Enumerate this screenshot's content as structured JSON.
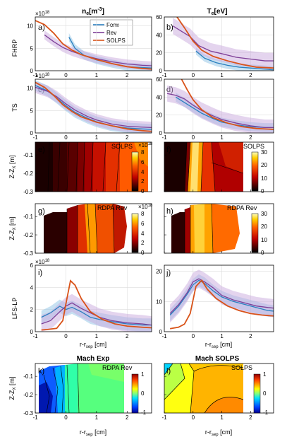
{
  "colors": {
    "forw": "#2a7fbf",
    "rev": "#7e3f98",
    "solps": "#d95319",
    "forw_band": "#8fc3e6",
    "rev_band": "#c9a9dd"
  },
  "column_titles": {
    "ne": "n",
    "ne_sub": "e",
    "ne_unit": "[m",
    "ne_exp": "-3",
    "ne_close": "]",
    "te": "T",
    "te_sub": "e",
    "te_unit": "[eV]"
  },
  "row_labels": {
    "fhrp": "FHRP",
    "ts": "TS",
    "lfslp": "LFS-LP",
    "zz": "Z-Z",
    "zz_sub": "X",
    "zz_unit": " [m]"
  },
  "x_axis_label": {
    "main": "r-r",
    "sub": "sep",
    "unit": " [cm]"
  },
  "exp_label": "18",
  "legend": [
    "Forw",
    "Rev",
    "SOLPS"
  ],
  "panel_letters": [
    "a)",
    "b)",
    "c)",
    "d)",
    "e)",
    "f)",
    "g)",
    "h)",
    "i)",
    "j)",
    "k)",
    "l)"
  ],
  "map_titles": {
    "k": "Mach Exp",
    "l": "Mach SOLPS"
  },
  "map_tags": {
    "e": "SOLPS",
    "f": "SOLPS",
    "g": "RDPA Rev",
    "h": "RDPA Rev",
    "k": "RDPA Rev",
    "l": "SOLPS"
  },
  "colorbars": {
    "e": {
      "ticks": [
        "8",
        "6",
        "4",
        "2",
        "0"
      ],
      "exp": "18"
    },
    "f": {
      "ticks": [
        "30",
        "20",
        "10",
        "0"
      ]
    },
    "g": {
      "ticks": [
        "8",
        "6",
        "4",
        "2",
        "0"
      ],
      "exp": "18"
    },
    "h": {
      "ticks": [
        "30",
        "20",
        "10",
        "0"
      ]
    },
    "l": {
      "ticks": [
        "1",
        "0",
        "-1"
      ]
    },
    "k": {
      "ticks": [
        "1",
        "0",
        "-1"
      ]
    }
  },
  "chart_data": [
    {
      "id": "a",
      "type": "line",
      "ylabel": "FHRP",
      "xlim": [
        -1,
        2.8
      ],
      "ylim": [
        0,
        12
      ],
      "yticks": [
        0,
        5,
        10
      ],
      "exponent": "18",
      "legend": true,
      "series": [
        {
          "name": "Forw",
          "x": [
            0.1,
            0.3,
            0.6,
            1.0,
            1.5,
            2.0,
            2.5,
            2.8
          ],
          "y": [
            7.5,
            5.0,
            3.4,
            2.4,
            1.6,
            0.9,
            0.7,
            0.6
          ],
          "band": 0.9
        },
        {
          "name": "Rev",
          "x": [
            -0.7,
            -0.4,
            -0.1,
            0.2,
            0.6,
            1.0,
            1.5,
            2.0,
            2.5,
            2.8
          ],
          "y": [
            8.0,
            6.5,
            5.2,
            4.3,
            3.4,
            2.7,
            2.0,
            1.5,
            1.2,
            1.1
          ],
          "band": 1.0
        },
        {
          "name": "SOLPS",
          "x": [
            -1.0,
            -0.7,
            -0.4,
            -0.1,
            0.2,
            0.5,
            1.0,
            1.5,
            2.0,
            2.5,
            2.8
          ],
          "y": [
            11.2,
            10.3,
            8.4,
            6.0,
            4.6,
            3.6,
            2.5,
            1.6,
            0.9,
            0.5,
            0.35
          ]
        }
      ]
    },
    {
      "id": "b",
      "type": "line",
      "xlim": [
        -1,
        2.8
      ],
      "ylim": [
        0,
        60
      ],
      "yticks": [
        0,
        20,
        40,
        60
      ],
      "series": [
        {
          "name": "Forw",
          "x": [
            0.1,
            0.4,
            0.8,
            1.2,
            1.6,
            2.0,
            2.4,
            2.8
          ],
          "y": [
            22,
            14,
            9,
            6,
            4,
            3,
            2,
            1
          ],
          "band": 4
        },
        {
          "name": "Rev",
          "x": [
            -0.7,
            -0.4,
            -0.1,
            0.2,
            0.6,
            1.0,
            1.5,
            2.0,
            2.5,
            2.8
          ],
          "y": [
            50,
            44,
            38,
            28,
            22,
            19,
            15,
            13,
            11,
            11
          ],
          "band": 9
        },
        {
          "name": "SOLPS",
          "x": [
            -0.9,
            -0.6,
            -0.3,
            0.0,
            0.3,
            0.7,
            1.2,
            1.7,
            2.2,
            2.8
          ],
          "y": [
            75,
            62,
            48,
            33,
            23,
            16,
            11,
            7,
            4,
            3
          ]
        }
      ]
    },
    {
      "id": "c",
      "type": "line",
      "ylabel": "TS",
      "xlim": [
        -1,
        2.8
      ],
      "ylim": [
        0,
        12
      ],
      "yticks": [
        0,
        5,
        10
      ],
      "exponent": "18",
      "series": [
        {
          "name": "Forw",
          "x": [
            -1.0,
            -0.6,
            -0.3,
            0.0,
            0.3,
            0.7,
            1.0,
            1.5,
            2.0,
            2.5,
            2.8
          ],
          "y": [
            10.6,
            9.4,
            7.8,
            6.1,
            4.6,
            3.3,
            2.5,
            1.6,
            1.1,
            0.9,
            0.8
          ],
          "band": 1.2
        },
        {
          "name": "Rev",
          "x": [
            -1.0,
            -0.6,
            -0.3,
            0.0,
            0.3,
            0.7,
            1.0,
            1.5,
            2.0,
            2.5,
            2.8
          ],
          "y": [
            10.2,
            9.3,
            8.1,
            6.5,
            5.1,
            3.7,
            2.9,
            2.0,
            1.5,
            1.3,
            1.2
          ],
          "band": 1.3
        },
        {
          "name": "SOLPS",
          "x": [
            -1.0,
            -0.7,
            -0.4,
            -0.1,
            0.2,
            0.5,
            1.0,
            1.5,
            2.0,
            2.5,
            2.8
          ],
          "y": [
            11.3,
            10.2,
            8.4,
            6.3,
            4.8,
            3.6,
            2.4,
            1.6,
            0.9,
            0.5,
            0.35
          ]
        }
      ]
    },
    {
      "id": "d",
      "type": "line",
      "xlim": [
        -1,
        2.8
      ],
      "ylim": [
        0,
        60
      ],
      "yticks": [
        0,
        20,
        40,
        60
      ],
      "series": [
        {
          "name": "Forw",
          "x": [
            -0.6,
            -0.3,
            0.0,
            0.3,
            0.7,
            1.0,
            1.5,
            2.0,
            2.5,
            2.8
          ],
          "y": [
            40,
            34,
            28,
            22,
            16,
            12,
            9,
            7,
            6,
            6
          ],
          "band": 5
        },
        {
          "name": "Rev",
          "x": [
            -0.9,
            -0.6,
            -0.3,
            0.0,
            0.3,
            0.7,
            1.0,
            1.5,
            2.0,
            2.5,
            2.8
          ],
          "y": [
            44,
            42,
            38,
            31,
            25,
            19,
            15,
            11,
            8,
            6,
            6
          ],
          "band": 9
        },
        {
          "name": "SOLPS",
          "x": [
            -0.4,
            -0.2,
            0.0,
            0.3,
            0.7,
            1.2,
            1.7,
            2.2,
            2.8
          ],
          "y": [
            60,
            48,
            37,
            26,
            17,
            11,
            7,
            5,
            4
          ]
        }
      ]
    },
    {
      "id": "i",
      "type": "line",
      "ylabel": "LFS-LP",
      "xlim": [
        -1,
        2.8
      ],
      "ylim": [
        0,
        6
      ],
      "yticks": [
        0,
        2,
        4,
        6
      ],
      "exponent": "18",
      "series": [
        {
          "name": "Forw",
          "x": [
            -0.8,
            -0.5,
            -0.2,
            0.0,
            0.2,
            0.5,
            0.8,
            1.1,
            1.5,
            2.0,
            2.5,
            2.8
          ],
          "y": [
            1.3,
            1.7,
            2.3,
            2.0,
            2.2,
            1.8,
            1.3,
            1.1,
            0.9,
            0.7,
            0.6,
            0.6
          ],
          "band": 0.6
        },
        {
          "name": "Rev",
          "x": [
            -0.8,
            -0.5,
            -0.2,
            0.0,
            0.2,
            0.5,
            0.8,
            1.1,
            1.5,
            2.0,
            2.5,
            2.8
          ],
          "y": [
            0.7,
            1.0,
            1.8,
            2.3,
            2.6,
            2.1,
            1.7,
            1.3,
            1.0,
            0.8,
            0.7,
            0.6
          ],
          "band": 0.8
        },
        {
          "name": "SOLPS",
          "x": [
            -0.8,
            -0.6,
            -0.3,
            -0.1,
            0.0,
            0.15,
            0.3,
            0.5,
            0.8,
            1.2,
            1.6,
            2.0,
            2.5,
            2.8
          ],
          "y": [
            0.15,
            0.2,
            0.3,
            1.0,
            2.5,
            4.6,
            4.2,
            3.0,
            1.8,
            1.1,
            0.7,
            0.5,
            0.4,
            0.35
          ]
        }
      ]
    },
    {
      "id": "j",
      "type": "line",
      "xlim": [
        -1,
        2.8
      ],
      "ylim": [
        0,
        22
      ],
      "yticks": [
        0,
        10,
        20
      ],
      "series": [
        {
          "name": "Forw",
          "x": [
            -0.8,
            -0.5,
            -0.2,
            0.0,
            0.2,
            0.4,
            0.7,
            1.0,
            1.4,
            1.8,
            2.2,
            2.6,
            2.8
          ],
          "y": [
            5.5,
            8.5,
            12.5,
            15.5,
            17.0,
            16.0,
            13.5,
            11.5,
            10.0,
            9.0,
            8.0,
            7.0,
            6.8
          ],
          "band": 2.0
        },
        {
          "name": "Rev",
          "x": [
            -0.8,
            -0.5,
            -0.2,
            0.0,
            0.2,
            0.4,
            0.7,
            1.0,
            1.4,
            1.8,
            2.2,
            2.6,
            2.8
          ],
          "y": [
            6.0,
            9.0,
            13.0,
            16.5,
            17.5,
            16.5,
            14.5,
            12.0,
            10.5,
            9.5,
            8.5,
            8.0,
            7.8
          ],
          "band": 3.0
        },
        {
          "name": "SOLPS",
          "x": [
            -0.8,
            -0.5,
            -0.3,
            -0.1,
            0.1,
            0.3,
            0.5,
            0.8,
            1.2,
            1.6,
            2.0,
            2.4,
            2.8
          ],
          "y": [
            1.0,
            1.5,
            2.5,
            6.0,
            15.0,
            17.0,
            14.0,
            11.0,
            8.5,
            7.0,
            6.0,
            5.5,
            5.2
          ]
        }
      ]
    }
  ],
  "map_axes": {
    "xlim": [
      -1,
      2.8
    ],
    "ylim": [
      -0.3,
      -0.03
    ],
    "xticks": [
      -1,
      0,
      1,
      2
    ],
    "yticks": [
      -0.1,
      -0.2,
      -0.3
    ],
    "ytick_labels": [
      "-0.1",
      "-0.2",
      "-0.3"
    ]
  }
}
